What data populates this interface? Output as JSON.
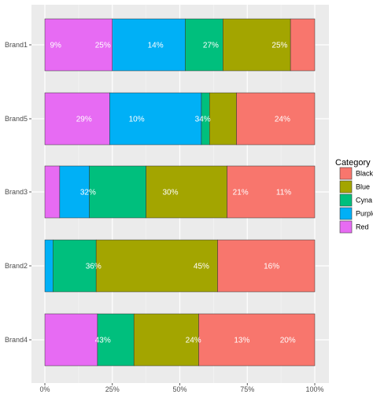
{
  "chart_data": {
    "type": "bar",
    "orientation": "horizontal",
    "stacked": true,
    "title": "",
    "xlabel": "",
    "ylabel": "",
    "xlim": [
      0,
      1
    ],
    "x_ticks": [
      0,
      0.25,
      0.5,
      0.75,
      1.0
    ],
    "x_tick_labels": [
      "0%",
      "25%",
      "50%",
      "75%",
      "100%"
    ],
    "grid": true,
    "legend_position": "right",
    "legend_title": "Category",
    "categories": [
      "Brand1",
      "Brand5",
      "Brand3",
      "Brand2",
      "Brand4"
    ],
    "series": [
      {
        "name": "Red",
        "color": "#E76BF3",
        "values": [
          0.25,
          0.24,
          0.055,
          0.0,
          0.195
        ]
      },
      {
        "name": "Purple",
        "color": "#00B0F6",
        "values": [
          0.27,
          0.34,
          0.11,
          0.03,
          0.0
        ]
      },
      {
        "name": "Cyna",
        "color": "#00BF7D",
        "values": [
          0.14,
          0.03,
          0.21,
          0.16,
          0.135
        ]
      },
      {
        "name": "Blue",
        "color": "#A3A500",
        "values": [
          0.25,
          0.1,
          0.3,
          0.45,
          0.24
        ]
      },
      {
        "name": "Black",
        "color": "#F8766D",
        "values": [
          0.09,
          0.29,
          0.325,
          0.36,
          0.43
        ]
      }
    ],
    "data_labels": [
      [
        {
          "x": 0.04,
          "text": "9%"
        },
        {
          "x": 0.215,
          "text": "25%"
        },
        {
          "x": 0.41,
          "text": "14%"
        },
        {
          "x": 0.615,
          "text": "27%"
        },
        {
          "x": 0.87,
          "text": "25%"
        }
      ],
      [
        {
          "x": 0.145,
          "text": "29%"
        },
        {
          "x": 0.34,
          "text": "10%"
        },
        {
          "x": 0.585,
          "text": "34%"
        },
        {
          "x": 0.88,
          "text": "24%"
        }
      ],
      [
        {
          "x": 0.16,
          "text": "32%"
        },
        {
          "x": 0.465,
          "text": "30%"
        },
        {
          "x": 0.725,
          "text": "21%"
        },
        {
          "x": 0.885,
          "text": "11%"
        }
      ],
      [
        {
          "x": 0.18,
          "text": "36%"
        },
        {
          "x": 0.58,
          "text": "45%"
        },
        {
          "x": 0.84,
          "text": "16%"
        }
      ],
      [
        {
          "x": 0.215,
          "text": "43%"
        },
        {
          "x": 0.55,
          "text": "24%"
        },
        {
          "x": 0.73,
          "text": "13%"
        },
        {
          "x": 0.9,
          "text": "20%"
        }
      ]
    ],
    "legend_items": [
      {
        "name": "Black",
        "color": "#F8766D"
      },
      {
        "name": "Blue",
        "color": "#A3A500"
      },
      {
        "name": "Cyna",
        "color": "#00BF7D"
      },
      {
        "name": "Purple",
        "color": "#00B0F6"
      },
      {
        "name": "Red",
        "color": "#E76BF3"
      }
    ]
  }
}
